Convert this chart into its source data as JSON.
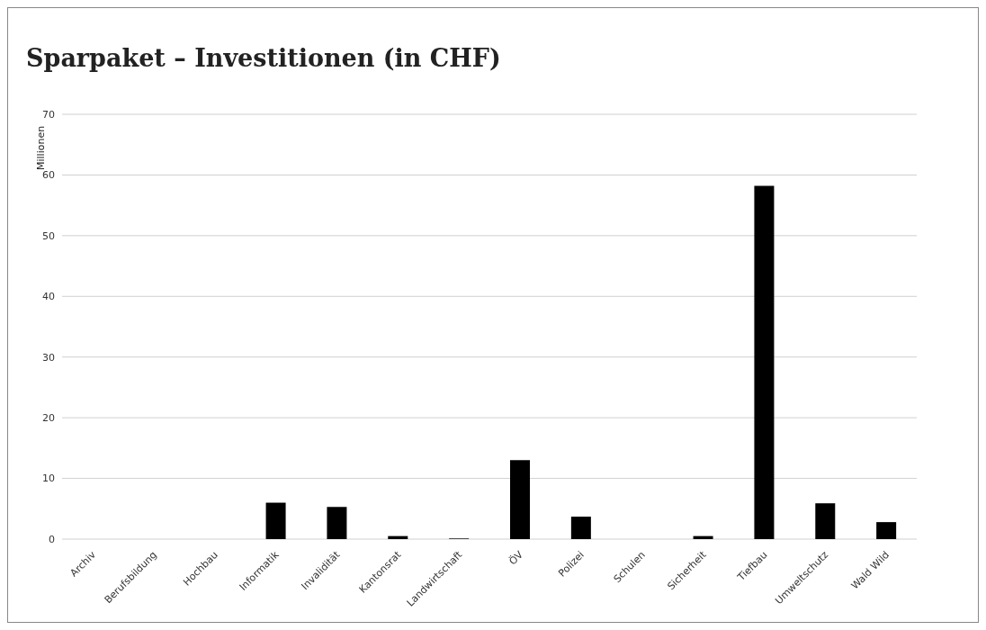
{
  "chart_data": {
    "type": "bar",
    "title": "Sparpaket – Investitionen (in CHF)",
    "ylabel": "Millionen",
    "categories": [
      "Archiv",
      "Berufsbildung",
      "Hochbau",
      "Informatik",
      "Invalidität",
      "Kantonsrat",
      "Landwirtschaft",
      "ÖV",
      "Polizei",
      "Schulen",
      "Sicherheit",
      "Tiefbau",
      "Umweltschutz",
      "Wald Wild"
    ],
    "values": [
      0,
      0,
      0,
      6.0,
      5.3,
      0.5,
      0.1,
      13,
      3.7,
      0,
      0.5,
      58.2,
      5.9,
      2.8
    ],
    "color": "#000000",
    "ylim": [
      0,
      70
    ],
    "yticks": [
      0,
      10,
      20,
      30,
      40,
      50,
      60,
      70
    ],
    "grid": "y"
  }
}
